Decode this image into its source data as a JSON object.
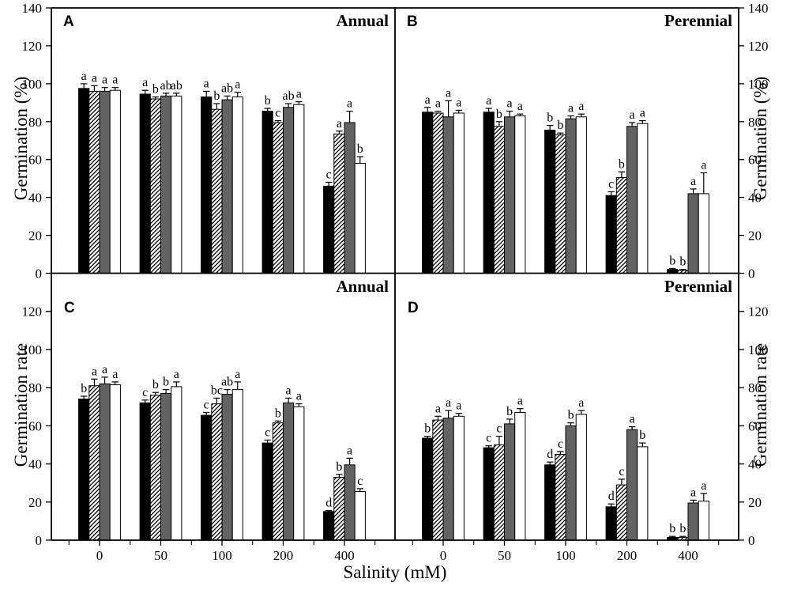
{
  "chart_data": {
    "type": "bar",
    "layout": "2x2 panel grid, grouped bars with upper error bars and significance letters",
    "x_axis_title": "Salinity (mM)",
    "categories": [
      "0",
      "50",
      "100",
      "200",
      "400"
    ],
    "ylim": [
      0,
      140
    ],
    "y_ticks_top_row": [
      0,
      20,
      40,
      60,
      80,
      100,
      120,
      140
    ],
    "y_ticks_bottom_row": [
      0,
      20,
      40,
      60,
      80,
      100,
      120
    ],
    "grid": "off",
    "legend": "none",
    "colors": {
      "bar_black": "#000000",
      "bar_gray": "#636363",
      "bar_white": "#ffffff",
      "hatch_line": "#000000",
      "axis": "#000000"
    },
    "panels": [
      {
        "panel_label": "A",
        "title": "Annual",
        "ylabel": "Germination (%)",
        "row": "top",
        "col": "left",
        "series": [
          {
            "name": "solid-black",
            "fill": "black",
            "values": [
              97.5,
              94.5,
              93,
              85.5,
              46
            ],
            "errors": [
              2.5,
              2,
              3,
              1.5,
              2
            ],
            "letters": [
              "a",
              "a",
              "a",
              "b",
              "c"
            ]
          },
          {
            "name": "diagonal-hatch",
            "fill": "hatch",
            "values": [
              96,
              92,
              86.5,
              79.5,
              73.5
            ],
            "errors": [
              3,
              1,
              3,
              1,
              1.5
            ],
            "letters": [
              "a",
              "b",
              "b",
              "c",
              "a"
            ]
          },
          {
            "name": "solid-gray",
            "fill": "gray",
            "values": [
              96,
              93.5,
              91.5,
              87.5,
              79.5
            ],
            "errors": [
              2,
              1.5,
              2,
              2,
              6
            ],
            "letters": [
              "a",
              "ab",
              "ab",
              "ab",
              "a"
            ]
          },
          {
            "name": "open-white",
            "fill": "white",
            "values": [
              96.5,
              93.5,
              93,
              89,
              58
            ],
            "errors": [
              1.5,
              1.5,
              2.5,
              1.5,
              3.5
            ],
            "letters": [
              "a",
              "ab",
              "a",
              "a",
              "b"
            ]
          }
        ]
      },
      {
        "panel_label": "B",
        "title": "Perennial",
        "ylabel": "Germination (%)",
        "row": "top",
        "col": "right",
        "series": [
          {
            "name": "solid-black",
            "fill": "black",
            "values": [
              85,
              85,
              75.5,
              41,
              2
            ],
            "errors": [
              2.5,
              2,
              2.5,
              2,
              0.5
            ],
            "letters": [
              "a",
              "a",
              "b",
              "c",
              "b"
            ]
          },
          {
            "name": "diagonal-hatch",
            "fill": "hatch",
            "values": [
              84.5,
              77.5,
              73,
              50.5,
              1.5
            ],
            "errors": [
              1,
              2.5,
              1,
              3,
              0.5
            ],
            "letters": [
              "a",
              "b",
              "b",
              "b",
              "b"
            ]
          },
          {
            "name": "solid-gray",
            "fill": "gray",
            "values": [
              82.5,
              82.5,
              81.5,
              77.5,
              42
            ],
            "errors": [
              8.5,
              3,
              1.5,
              2,
              2.5
            ],
            "letters": [
              "a",
              "a",
              "a",
              "a",
              "a"
            ]
          },
          {
            "name": "open-white",
            "fill": "white",
            "values": [
              84.5,
              83,
              82.5,
              79,
              42
            ],
            "errors": [
              1.5,
              1,
              1.5,
              1.5,
              11
            ],
            "letters": [
              "a",
              "a",
              "a",
              "a",
              "a"
            ]
          }
        ]
      },
      {
        "panel_label": "C",
        "title": "Annual",
        "ylabel": "Germination rate",
        "row": "bottom",
        "col": "left",
        "series": [
          {
            "name": "solid-black",
            "fill": "black",
            "values": [
              74,
              72,
              65.5,
              51,
              15
            ],
            "errors": [
              1.5,
              1.5,
              1.5,
              1.5,
              0.5
            ],
            "letters": [
              "b",
              "c",
              "c",
              "c",
              "d"
            ]
          },
          {
            "name": "diagonal-hatch",
            "fill": "hatch",
            "values": [
              81,
              76,
              71.5,
              61.5,
              33
            ],
            "errors": [
              3.5,
              1.5,
              3,
              1,
              1.5
            ],
            "letters": [
              "a",
              "b",
              "bc",
              "b",
              "b"
            ]
          },
          {
            "name": "solid-gray",
            "fill": "gray",
            "values": [
              82,
              77,
              76.5,
              72,
              39.5
            ],
            "errors": [
              3.5,
              2,
              2.5,
              2.5,
              3.5
            ],
            "letters": [
              "a",
              "b",
              "ab",
              "a",
              "a"
            ]
          },
          {
            "name": "open-white",
            "fill": "white",
            "values": [
              81.5,
              80.5,
              79,
              70,
              25.5
            ],
            "errors": [
              1.5,
              2.5,
              4,
              1.5,
              1.5
            ],
            "letters": [
              "a",
              "a",
              "a",
              "a",
              "c"
            ]
          }
        ]
      },
      {
        "panel_label": "D",
        "title": "Perennial",
        "ylabel": "Germination rate",
        "row": "bottom",
        "col": "right",
        "series": [
          {
            "name": "solid-black",
            "fill": "black",
            "values": [
              53.5,
              48.5,
              39.5,
              17.5,
              1.5
            ],
            "errors": [
              1,
              1,
              1.5,
              1.5,
              0.5
            ],
            "letters": [
              "b",
              "c",
              "d",
              "d",
              "b"
            ]
          },
          {
            "name": "diagonal-hatch",
            "fill": "hatch",
            "values": [
              63,
              50,
              45,
              29,
              1.5
            ],
            "errors": [
              2,
              4.5,
              1.5,
              3,
              0.5
            ],
            "letters": [
              "a",
              "c",
              "c",
              "c",
              "b"
            ]
          },
          {
            "name": "solid-gray",
            "fill": "gray",
            "values": [
              64,
              61,
              60,
              58,
              19.5
            ],
            "errors": [
              4,
              2.5,
              1.5,
              1.5,
              1.5
            ],
            "letters": [
              "a",
              "b",
              "b",
              "a",
              "a"
            ]
          },
          {
            "name": "open-white",
            "fill": "white",
            "values": [
              65,
              67,
              66,
              49,
              20.5
            ],
            "errors": [
              1.5,
              2,
              2,
              2,
              4
            ],
            "letters": [
              "a",
              "a",
              "a",
              "b",
              "a"
            ]
          }
        ]
      }
    ]
  }
}
